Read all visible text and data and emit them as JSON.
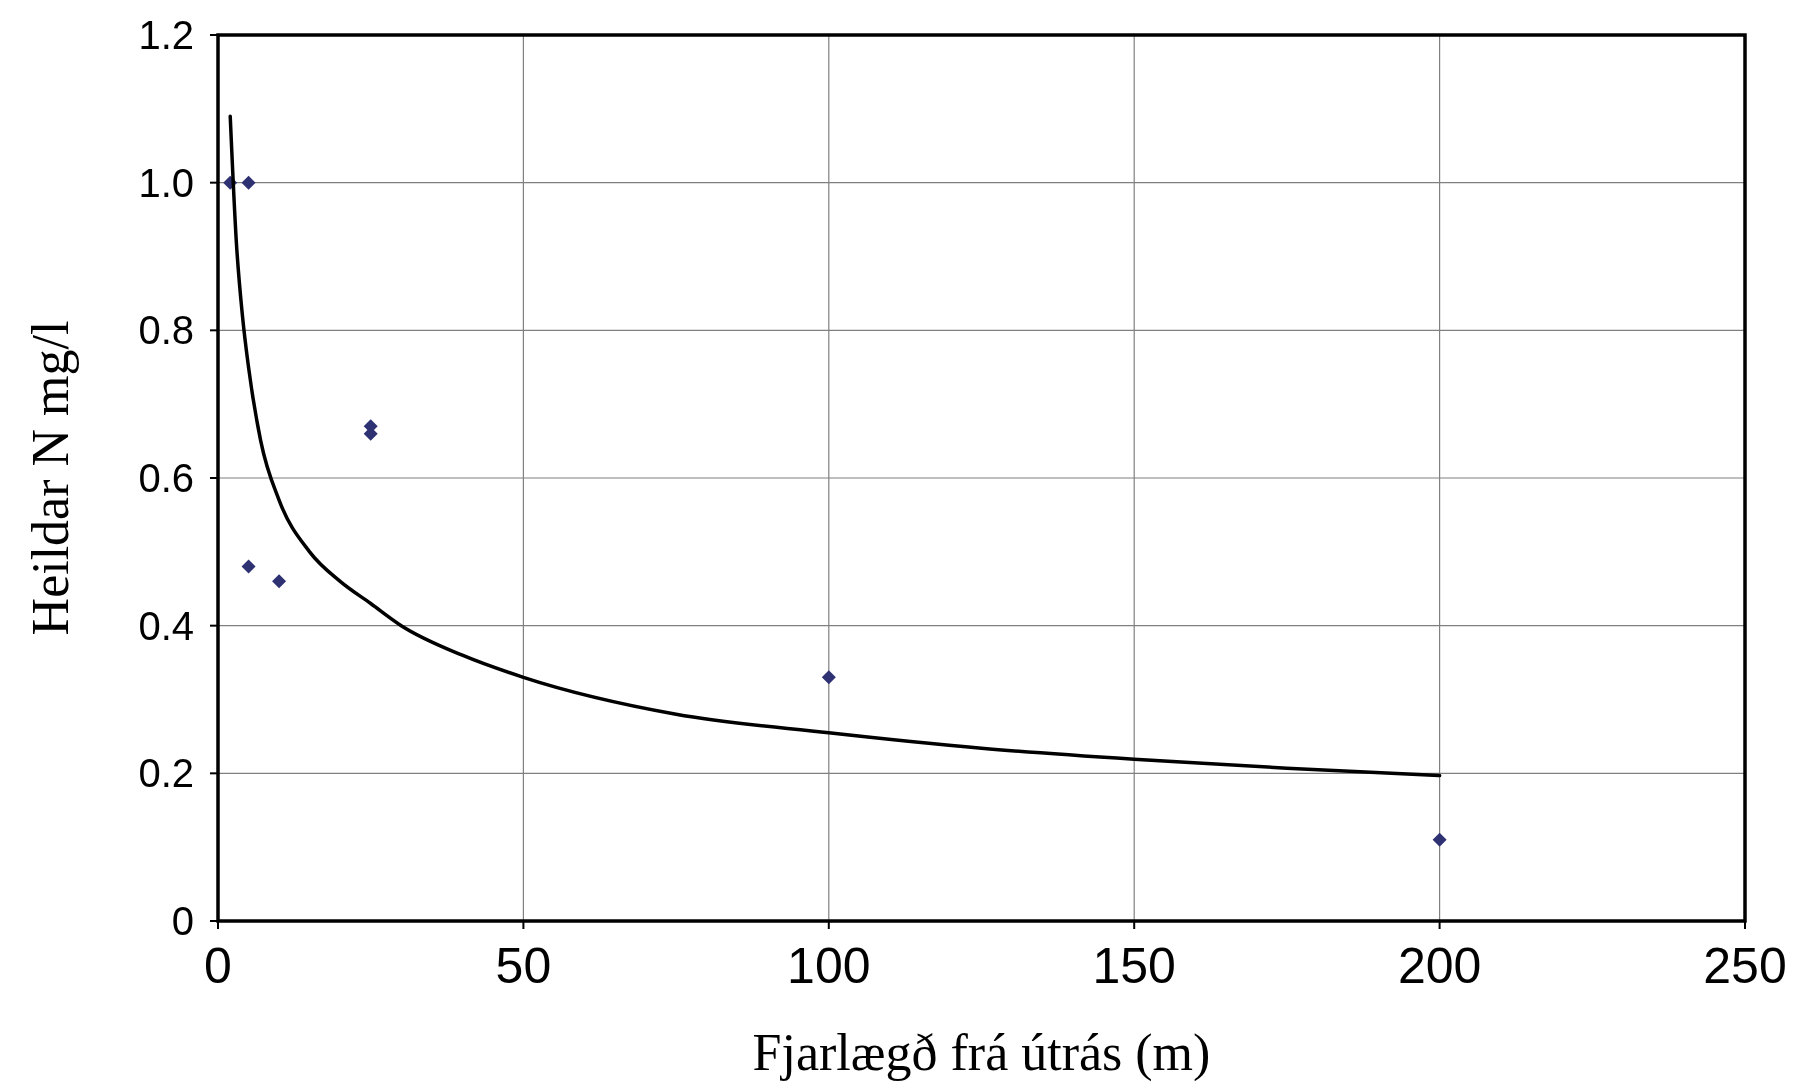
{
  "chart_data": {
    "type": "scatter",
    "xlabel": "Fjarlægð frá útrás (m)",
    "ylabel": "Heildar N mg/l",
    "xlim": [
      0,
      250
    ],
    "xticks": [
      0,
      50,
      100,
      150,
      200,
      250
    ],
    "ylim": [
      0,
      1.2
    ],
    "yticks": [
      {
        "value": 0,
        "label": "0"
      },
      {
        "value": 0.2,
        "label": "0.2"
      },
      {
        "value": 0.4,
        "label": "0.4"
      },
      {
        "value": 0.6,
        "label": "0.6"
      },
      {
        "value": 0.8,
        "label": "0.8"
      },
      {
        "value": 1,
        "label": "1.0"
      },
      {
        "value": 1.2,
        "label": "1.2"
      }
    ],
    "grid": true,
    "series": [
      {
        "color": "#2e3172",
        "marker": "diamond",
        "x": [
          2,
          5,
          5,
          10,
          25,
          25,
          100,
          200
        ],
        "values": [
          1.0,
          1.0,
          0.48,
          0.46,
          0.67,
          0.66,
          0.33,
          0.11
        ]
      },
      {
        "type": "line",
        "color": "#000000",
        "marker": "none",
        "line_style": "solid",
        "x": [
          2,
          3,
          4,
          5,
          7,
          10,
          15,
          20,
          25,
          30,
          40,
          50,
          75,
          100,
          125,
          150,
          175,
          200
        ],
        "values": [
          1.09,
          0.92,
          0.82,
          0.75,
          0.65,
          0.57,
          0.5,
          0.46,
          0.43,
          0.4,
          0.36,
          0.33,
          0.28,
          0.255,
          0.234,
          0.219,
          0.207,
          0.197
        ]
      }
    ]
  }
}
